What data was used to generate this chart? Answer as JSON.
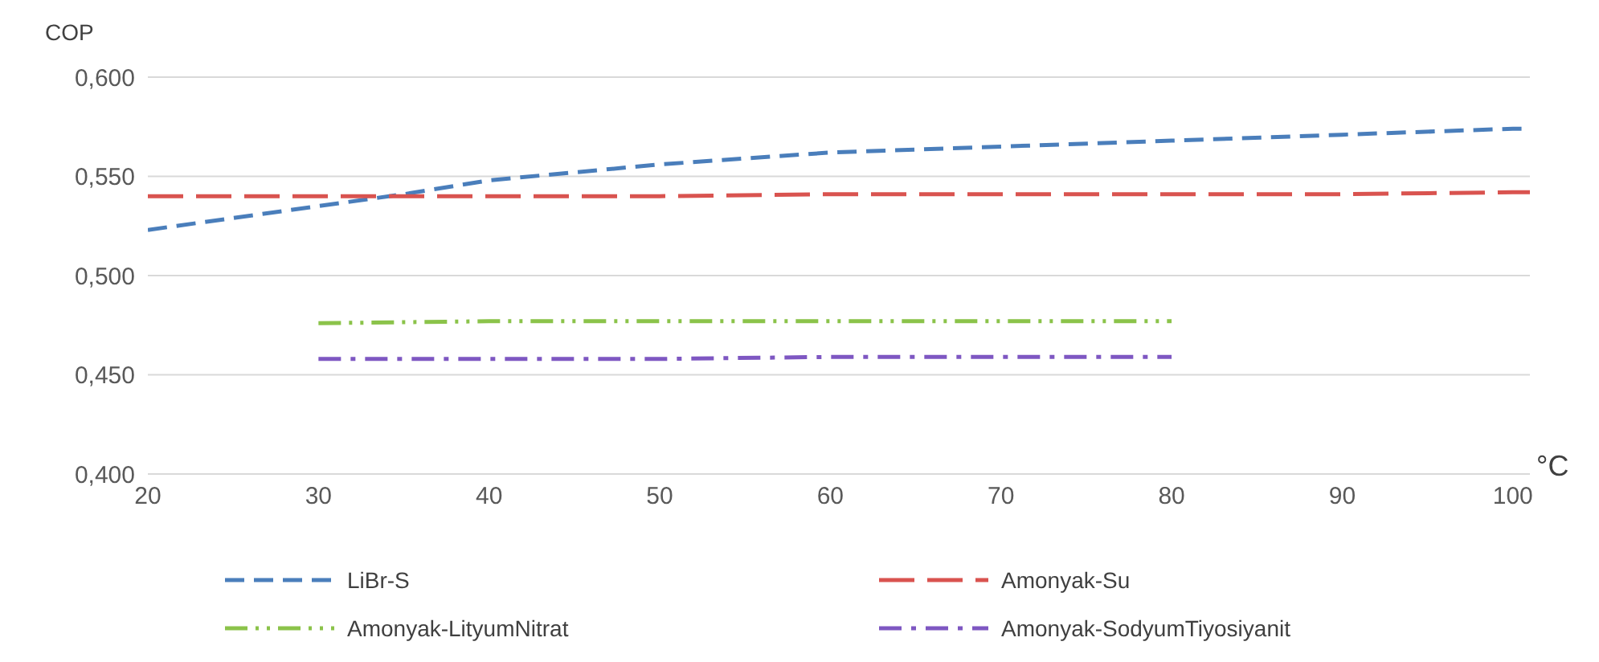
{
  "chart_data": {
    "type": "line",
    "ylabel": "COP",
    "xlabel": "°C",
    "xlim": [
      20,
      101
    ],
    "xticks": [
      20,
      30,
      40,
      50,
      60,
      70,
      80,
      90,
      100
    ],
    "ylim": [
      0.4,
      0.6
    ],
    "yticks": [
      {
        "value": 0.4,
        "label": "0,400"
      },
      {
        "value": 0.45,
        "label": "0,450"
      },
      {
        "value": 0.5,
        "label": "0,500"
      },
      {
        "value": 0.55,
        "label": "0,550"
      },
      {
        "value": 0.6,
        "label": "0,600"
      }
    ],
    "grid": "y",
    "legend": "bottom",
    "marker": "none",
    "series": [
      {
        "name": "LiBr-S",
        "color": "#4a7ebb",
        "line_style": "dashed",
        "x": [
          20,
          25,
          30,
          35,
          40,
          50,
          60,
          70,
          80,
          90,
          100,
          101
        ],
        "values": [
          0.523,
          0.529,
          0.535,
          0.541,
          0.548,
          0.556,
          0.562,
          0.565,
          0.568,
          0.571,
          0.574,
          0.574
        ]
      },
      {
        "name": "Amonyak-Su",
        "color": "#d9534f",
        "line_style": "dashed",
        "x": [
          20,
          30,
          40,
          50,
          60,
          70,
          80,
          90,
          100,
          101
        ],
        "values": [
          0.54,
          0.54,
          0.54,
          0.54,
          0.541,
          0.541,
          0.541,
          0.541,
          0.542,
          0.542
        ]
      },
      {
        "name": "Amonyak-LityumNitrat",
        "color": "#8bc34a",
        "line_style": "dashed",
        "x": [
          30,
          40,
          50,
          60,
          70,
          80
        ],
        "values": [
          0.476,
          0.477,
          0.477,
          0.477,
          0.477,
          0.477
        ]
      },
      {
        "name": "Amonyak-SodyumTiyosiyanit",
        "color": "#7e57c2",
        "line_style": "dashed",
        "x": [
          30,
          40,
          50,
          60,
          70,
          80
        ],
        "values": [
          0.458,
          0.458,
          0.458,
          0.459,
          0.459,
          0.459
        ]
      }
    ]
  }
}
